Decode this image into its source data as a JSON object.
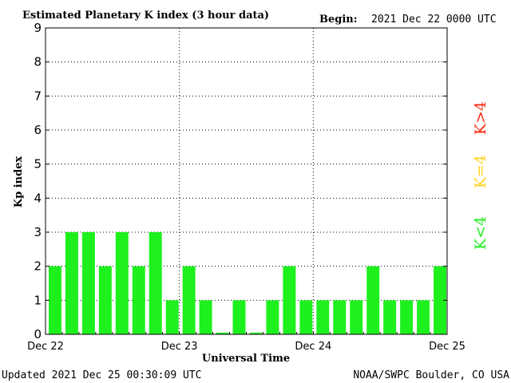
{
  "header": {
    "title": "Estimated Planetary K index (3 hour data)",
    "begin_label": "Begin:",
    "begin_value": "2021 Dec 22 0000 UTC"
  },
  "footer": {
    "updated": "Updated 2021 Dec 25 00:30:09 UTC",
    "source": "NOAA/SWPC Boulder, CO USA"
  },
  "legend": [
    {
      "label": "K>4",
      "color": "#ff2a10"
    },
    {
      "label": "K=4",
      "color": "#ffd21e"
    },
    {
      "label": "K<4",
      "color": "#20ee20"
    }
  ],
  "colors": {
    "bar": "#1ef01e",
    "axis": "#000000",
    "grid": "#000000"
  },
  "chart_data": {
    "type": "bar",
    "title": "Estimated Planetary K index (3 hour data)",
    "xlabel": "Universal Time",
    "ylabel": "Kp index",
    "ylim": [
      0,
      9
    ],
    "yticks": [
      0,
      1,
      2,
      3,
      4,
      5,
      6,
      7,
      8,
      9
    ],
    "grid": true,
    "xtick_labels": [
      "Dec 22",
      "Dec 23",
      "Dec 24",
      "Dec 25"
    ],
    "interval_hours": 3,
    "values": [
      2,
      3,
      3,
      2,
      3,
      2,
      3,
      1,
      2,
      1,
      0.05,
      1,
      0.05,
      1,
      2,
      1,
      1,
      1,
      1,
      2,
      1,
      1,
      1,
      2
    ]
  }
}
